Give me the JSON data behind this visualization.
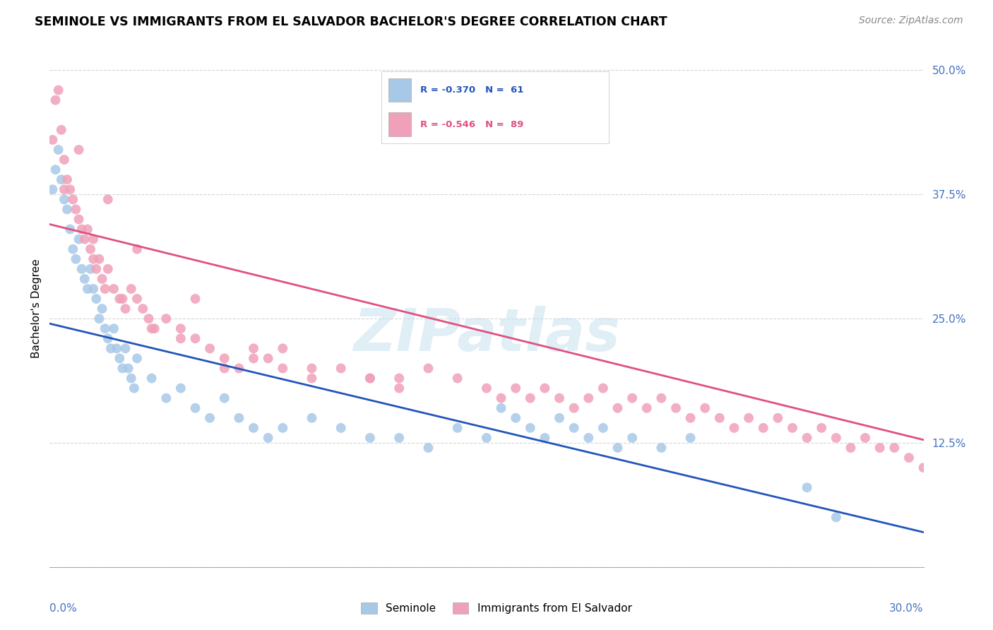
{
  "title": "SEMINOLE VS IMMIGRANTS FROM EL SALVADOR BACHELOR'S DEGREE CORRELATION CHART",
  "source": "Source: ZipAtlas.com",
  "ylabel": "Bachelor's Degree",
  "x_range": [
    0.0,
    0.3
  ],
  "y_range": [
    0.0,
    0.52
  ],
  "y_ticks": [
    0.0,
    0.125,
    0.25,
    0.375,
    0.5
  ],
  "y_tick_labels": [
    "",
    "12.5%",
    "25.0%",
    "37.5%",
    "50.0%"
  ],
  "color_blue": "#a8c8e8",
  "color_pink": "#f0a0b8",
  "line_blue": "#2255bb",
  "line_pink": "#e05080",
  "watermark": "ZIPatlas",
  "seminole_x": [
    0.001,
    0.002,
    0.003,
    0.004,
    0.005,
    0.006,
    0.007,
    0.008,
    0.009,
    0.01,
    0.011,
    0.012,
    0.013,
    0.014,
    0.015,
    0.016,
    0.017,
    0.018,
    0.019,
    0.02,
    0.021,
    0.022,
    0.023,
    0.024,
    0.025,
    0.026,
    0.027,
    0.028,
    0.029,
    0.03,
    0.035,
    0.04,
    0.045,
    0.05,
    0.055,
    0.06,
    0.065,
    0.07,
    0.075,
    0.08,
    0.09,
    0.1,
    0.11,
    0.12,
    0.13,
    0.14,
    0.15,
    0.155,
    0.16,
    0.165,
    0.17,
    0.175,
    0.18,
    0.185,
    0.19,
    0.195,
    0.2,
    0.21,
    0.22,
    0.26,
    0.27
  ],
  "seminole_y": [
    0.38,
    0.4,
    0.42,
    0.39,
    0.37,
    0.36,
    0.34,
    0.32,
    0.31,
    0.33,
    0.3,
    0.29,
    0.28,
    0.3,
    0.28,
    0.27,
    0.25,
    0.26,
    0.24,
    0.23,
    0.22,
    0.24,
    0.22,
    0.21,
    0.2,
    0.22,
    0.2,
    0.19,
    0.18,
    0.21,
    0.19,
    0.17,
    0.18,
    0.16,
    0.15,
    0.17,
    0.15,
    0.14,
    0.13,
    0.14,
    0.15,
    0.14,
    0.13,
    0.13,
    0.12,
    0.14,
    0.13,
    0.16,
    0.15,
    0.14,
    0.13,
    0.15,
    0.14,
    0.13,
    0.14,
    0.12,
    0.13,
    0.12,
    0.13,
    0.08,
    0.05
  ],
  "salvador_x": [
    0.001,
    0.002,
    0.003,
    0.004,
    0.005,
    0.006,
    0.007,
    0.008,
    0.009,
    0.01,
    0.011,
    0.012,
    0.013,
    0.014,
    0.015,
    0.016,
    0.017,
    0.018,
    0.019,
    0.02,
    0.022,
    0.024,
    0.026,
    0.028,
    0.03,
    0.032,
    0.034,
    0.036,
    0.04,
    0.045,
    0.05,
    0.055,
    0.06,
    0.065,
    0.07,
    0.075,
    0.08,
    0.09,
    0.1,
    0.11,
    0.12,
    0.13,
    0.14,
    0.15,
    0.155,
    0.16,
    0.165,
    0.17,
    0.175,
    0.18,
    0.185,
    0.19,
    0.195,
    0.2,
    0.205,
    0.21,
    0.215,
    0.22,
    0.225,
    0.23,
    0.235,
    0.24,
    0.245,
    0.25,
    0.255,
    0.26,
    0.265,
    0.27,
    0.275,
    0.28,
    0.285,
    0.29,
    0.295,
    0.3,
    0.01,
    0.02,
    0.03,
    0.05,
    0.08,
    0.12,
    0.005,
    0.015,
    0.025,
    0.035,
    0.045,
    0.06,
    0.07,
    0.09,
    0.11
  ],
  "salvador_y": [
    0.43,
    0.47,
    0.48,
    0.44,
    0.41,
    0.39,
    0.38,
    0.37,
    0.36,
    0.35,
    0.34,
    0.33,
    0.34,
    0.32,
    0.33,
    0.3,
    0.31,
    0.29,
    0.28,
    0.3,
    0.28,
    0.27,
    0.26,
    0.28,
    0.27,
    0.26,
    0.25,
    0.24,
    0.25,
    0.24,
    0.23,
    0.22,
    0.21,
    0.2,
    0.22,
    0.21,
    0.2,
    0.19,
    0.2,
    0.19,
    0.18,
    0.2,
    0.19,
    0.18,
    0.17,
    0.18,
    0.17,
    0.18,
    0.17,
    0.16,
    0.17,
    0.18,
    0.16,
    0.17,
    0.16,
    0.17,
    0.16,
    0.15,
    0.16,
    0.15,
    0.14,
    0.15,
    0.14,
    0.15,
    0.14,
    0.13,
    0.14,
    0.13,
    0.12,
    0.13,
    0.12,
    0.12,
    0.11,
    0.1,
    0.42,
    0.37,
    0.32,
    0.27,
    0.22,
    0.19,
    0.38,
    0.31,
    0.27,
    0.24,
    0.23,
    0.2,
    0.21,
    0.2,
    0.19
  ],
  "sem_line_x0": 0.0,
  "sem_line_x1": 0.3,
  "sem_line_y0": 0.245,
  "sem_line_y1": 0.035,
  "sal_line_x0": 0.0,
  "sal_line_x1": 0.3,
  "sal_line_y0": 0.345,
  "sal_line_y1": 0.128
}
